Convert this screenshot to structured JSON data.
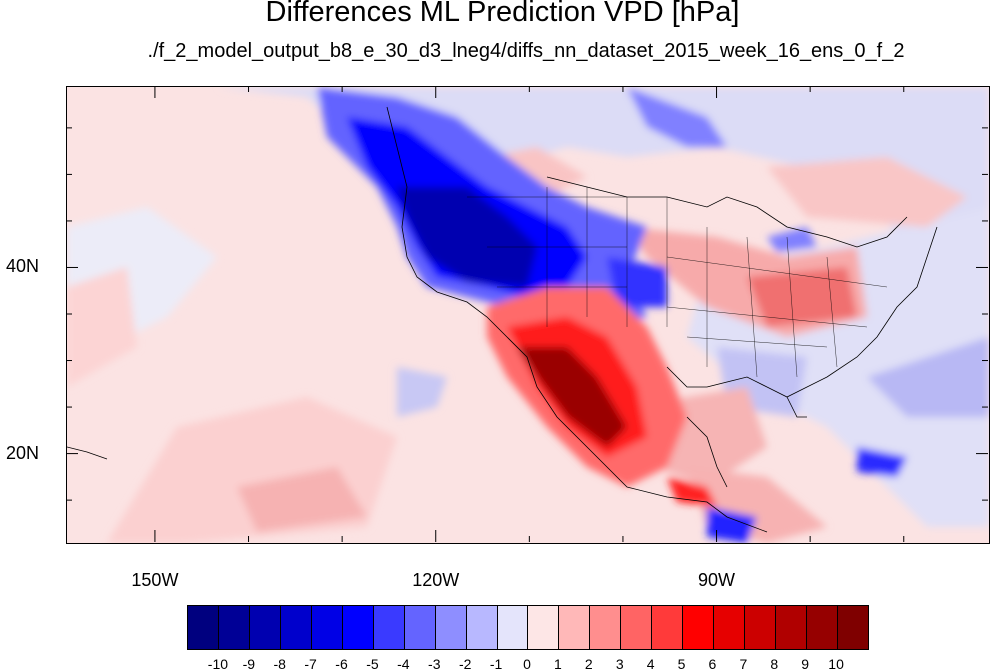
{
  "title": "Differences ML Prediction VPD [hPa]",
  "subtitle": "./f_2_model_output_b8_e_30_d3_lneg4/diffs_nn_dataset_2015_week_16_ens_0_f_2",
  "map": {
    "lon_range": [
      -159.5,
      -61
    ],
    "lat_range": [
      10.5,
      59.5
    ],
    "lon_ticks": [
      {
        "value": -150,
        "label": "150W"
      },
      {
        "value": -120,
        "label": "120W"
      },
      {
        "value": -90,
        "label": "90W"
      }
    ],
    "lat_ticks": [
      {
        "value": 40,
        "label": "40N"
      },
      {
        "value": 20,
        "label": "20N"
      }
    ],
    "variable": "VPD difference",
    "units": "hPa"
  },
  "colorbar": {
    "levels": [
      "-10",
      "-9",
      "-8",
      "-7",
      "-6",
      "-5",
      "-4",
      "-3",
      "-2",
      "-1",
      "0",
      "1",
      "2",
      "3",
      "4",
      "5",
      "6",
      "7",
      "8",
      "9",
      "10"
    ],
    "colors": [
      "#00007f",
      "#000096",
      "#0000b0",
      "#0000cc",
      "#0000e6",
      "#0000ff",
      "#3a3aff",
      "#6464ff",
      "#8e8eff",
      "#b8b8ff",
      "#e4e4fb",
      "#fde6e6",
      "#ffb8b8",
      "#ff8e8e",
      "#ff6464",
      "#ff3a3a",
      "#ff0000",
      "#e60000",
      "#cc0000",
      "#b00000",
      "#960000",
      "#7f0000"
    ]
  }
}
